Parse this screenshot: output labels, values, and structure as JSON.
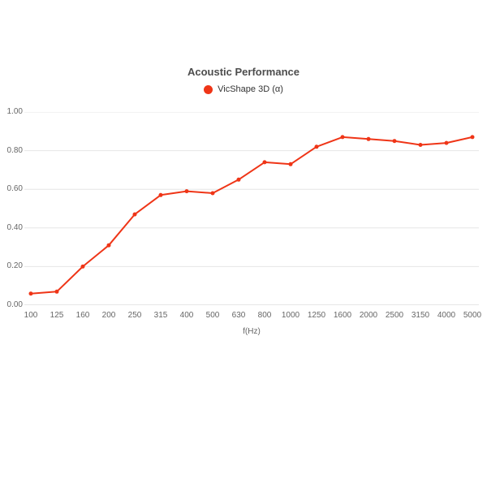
{
  "chart_data": {
    "type": "line",
    "title": "Acoustic Performance",
    "categories": [
      "100",
      "125",
      "160",
      "200",
      "250",
      "315",
      "400",
      "500",
      "630",
      "800",
      "1000",
      "1250",
      "1600",
      "2000",
      "2500",
      "3150",
      "4000",
      "5000"
    ],
    "series": [
      {
        "name": "VicShape 3D (α)",
        "color": "#ef3517",
        "values": [
          0.06,
          0.07,
          0.2,
          0.31,
          0.47,
          0.57,
          0.59,
          0.58,
          0.65,
          0.74,
          0.73,
          0.82,
          0.87,
          0.86,
          0.85,
          0.83,
          0.84,
          0.87
        ]
      }
    ],
    "xlabel": "f(Hz)",
    "ylabel": "",
    "ylim": [
      0,
      1.0
    ],
    "yticks": [
      "0.00",
      "0.20",
      "0.40",
      "0.60",
      "0.80",
      "1.00"
    ],
    "grid": true,
    "legend_position": "top",
    "colors": {
      "gridline": "#e6e6e6",
      "axis_line": "#cccccc",
      "title_text": "#4d4d4d",
      "tick_text": "#666666",
      "legend_text": "#333333"
    }
  }
}
